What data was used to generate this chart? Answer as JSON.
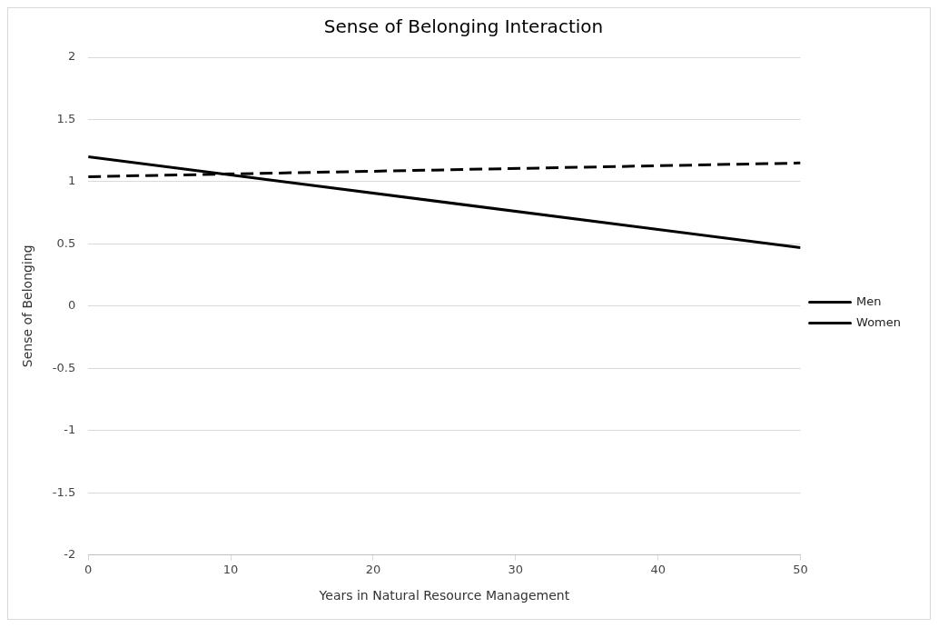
{
  "chart_data": {
    "type": "line",
    "title": "Sense of Belonging Interaction",
    "xlabel": "Years in Natural Resource Management",
    "ylabel": "Sense of Belonging",
    "x": [
      0,
      50
    ],
    "xlim": [
      0,
      50
    ],
    "xticks": [
      0,
      10,
      20,
      30,
      40,
      50
    ],
    "ylim": [
      -2,
      2
    ],
    "yticks": [
      -2,
      -1.5,
      -1,
      -0.5,
      0,
      0.5,
      1,
      1.5,
      2
    ],
    "series": [
      {
        "name": "Men",
        "color": "#000000",
        "values": [
          1.04,
          1.15
        ],
        "line_style": "dashed"
      },
      {
        "name": "Women",
        "color": "#000000",
        "values": [
          1.2,
          0.47
        ],
        "line_style": "solid"
      }
    ],
    "grid": "y",
    "legend": "right",
    "marker": "none"
  }
}
